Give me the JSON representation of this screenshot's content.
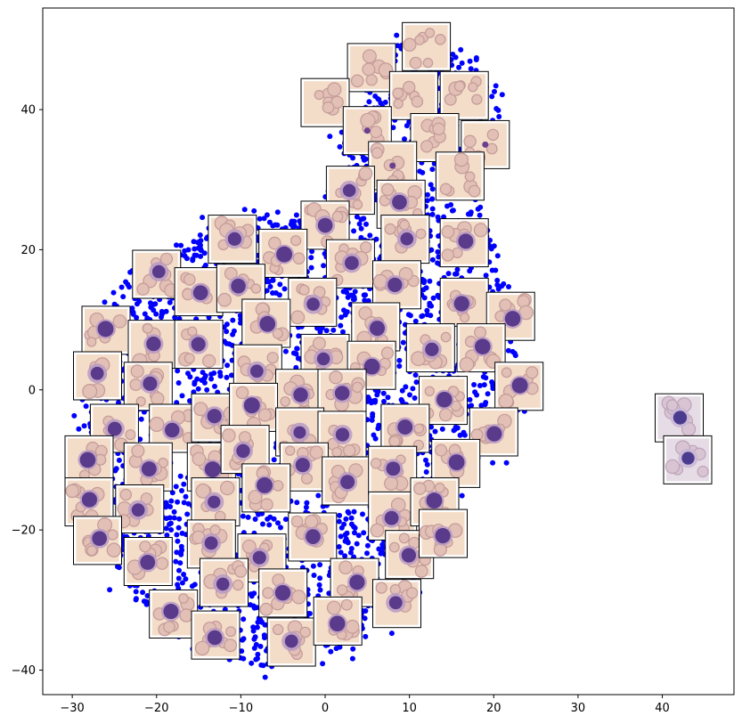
{
  "chart_data": {
    "type": "scatter",
    "title": "",
    "xlabel": "",
    "ylabel": "",
    "xlim": [
      -33.5,
      48.5
    ],
    "ylim": [
      -43.5,
      54.5
    ],
    "grid": false,
    "legend": "none",
    "xticks": [
      -30,
      -20,
      -10,
      0,
      10,
      20,
      30,
      40
    ],
    "yticks": [
      -40,
      -20,
      0,
      20,
      40
    ],
    "point_color": "#0000ff",
    "thumbnail_frame_color": "#000000",
    "cluster_outline": [
      [
        12,
        50
      ],
      [
        18,
        48
      ],
      [
        21,
        42
      ],
      [
        21,
        36
      ],
      [
        18,
        30
      ],
      [
        19,
        24
      ],
      [
        21,
        18
      ],
      [
        23,
        12
      ],
      [
        24,
        6
      ],
      [
        24,
        -2
      ],
      [
        22,
        -8
      ],
      [
        18,
        -14
      ],
      [
        14,
        -20
      ],
      [
        11,
        -26
      ],
      [
        9,
        -32
      ],
      [
        5,
        -36
      ],
      [
        0,
        -39
      ],
      [
        -5,
        -40
      ],
      [
        -10,
        -39
      ],
      [
        -14,
        -38
      ],
      [
        -18,
        -36
      ],
      [
        -22,
        -32
      ],
      [
        -24,
        -27
      ],
      [
        -27,
        -22
      ],
      [
        -30,
        -17
      ],
      [
        -30,
        -10
      ],
      [
        -29,
        -3
      ],
      [
        -29,
        4
      ],
      [
        -28,
        10
      ],
      [
        -24,
        16
      ],
      [
        -20,
        20
      ],
      [
        -14,
        23
      ],
      [
        -8,
        25
      ],
      [
        -2,
        26
      ],
      [
        2,
        30
      ],
      [
        1,
        36
      ],
      [
        3,
        43
      ],
      [
        8,
        49
      ]
    ],
    "outlier_points": [
      [
        41,
        -7
      ],
      [
        41,
        -10
      ],
      [
        42,
        -8
      ]
    ],
    "thumbnails": [
      {
        "x": 12,
        "y": 49,
        "kind": "rbc"
      },
      {
        "x": 5.5,
        "y": 46,
        "kind": "rbc"
      },
      {
        "x": 0,
        "y": 41,
        "kind": "rbc"
      },
      {
        "x": 10.5,
        "y": 42,
        "kind": "rbc"
      },
      {
        "x": 16.5,
        "y": 42,
        "kind": "rbc"
      },
      {
        "x": 5,
        "y": 37,
        "kind": "dot"
      },
      {
        "x": 13,
        "y": 36,
        "kind": "rbc"
      },
      {
        "x": 19,
        "y": 35,
        "kind": "dot"
      },
      {
        "x": 8,
        "y": 32,
        "kind": "dot"
      },
      {
        "x": 16,
        "y": 30.5,
        "kind": "rbc"
      },
      {
        "x": 3,
        "y": 28.5,
        "kind": "cell"
      },
      {
        "x": 9,
        "y": 26.5,
        "kind": "cell"
      },
      {
        "x": 0,
        "y": 23.5,
        "kind": "cell"
      },
      {
        "x": -11,
        "y": 21.5,
        "kind": "cell"
      },
      {
        "x": -5,
        "y": 19.5,
        "kind": "cell"
      },
      {
        "x": 3,
        "y": 18,
        "kind": "cell"
      },
      {
        "x": 9.5,
        "y": 21.5,
        "kind": "cell"
      },
      {
        "x": 16.5,
        "y": 21,
        "kind": "cell"
      },
      {
        "x": -20,
        "y": 16.5,
        "kind": "cell"
      },
      {
        "x": -15,
        "y": 14,
        "kind": "cell"
      },
      {
        "x": -10,
        "y": 14.5,
        "kind": "cell"
      },
      {
        "x": -1.5,
        "y": 12.5,
        "kind": "cell"
      },
      {
        "x": 8.5,
        "y": 15,
        "kind": "cell"
      },
      {
        "x": 16.5,
        "y": 12.5,
        "kind": "cell"
      },
      {
        "x": 22,
        "y": 10.5,
        "kind": "cell"
      },
      {
        "x": -26,
        "y": 8.5,
        "kind": "cell"
      },
      {
        "x": -20.5,
        "y": 6.5,
        "kind": "cell"
      },
      {
        "x": -15,
        "y": 6.5,
        "kind": "cell"
      },
      {
        "x": -7,
        "y": 9.5,
        "kind": "cell"
      },
      {
        "x": 6,
        "y": 9,
        "kind": "cell"
      },
      {
        "x": 12.5,
        "y": 6,
        "kind": "cell"
      },
      {
        "x": 18.5,
        "y": 6,
        "kind": "cell"
      },
      {
        "x": -27,
        "y": 2,
        "kind": "cell"
      },
      {
        "x": -21,
        "y": 0.5,
        "kind": "cell"
      },
      {
        "x": -8,
        "y": 3,
        "kind": "cell"
      },
      {
        "x": 0,
        "y": 4.5,
        "kind": "cell"
      },
      {
        "x": 5.5,
        "y": 3.5,
        "kind": "cell"
      },
      {
        "x": 23,
        "y": 0.5,
        "kind": "cell"
      },
      {
        "x": -3,
        "y": -0.5,
        "kind": "cell"
      },
      {
        "x": 2,
        "y": -0.5,
        "kind": "cell"
      },
      {
        "x": 14,
        "y": -1.5,
        "kind": "cell"
      },
      {
        "x": -25,
        "y": -5.5,
        "kind": "cell"
      },
      {
        "x": -18,
        "y": -5.5,
        "kind": "cell"
      },
      {
        "x": -13,
        "y": -4,
        "kind": "cell"
      },
      {
        "x": -8.5,
        "y": -2.5,
        "kind": "cell"
      },
      {
        "x": -3,
        "y": -6,
        "kind": "cell"
      },
      {
        "x": 2,
        "y": -6.5,
        "kind": "cell"
      },
      {
        "x": 9.5,
        "y": -5.5,
        "kind": "cell"
      },
      {
        "x": 20,
        "y": -6,
        "kind": "cell"
      },
      {
        "x": 42,
        "y": -4,
        "kind": "cell-pale"
      },
      {
        "x": 43,
        "y": -10,
        "kind": "cell-pale"
      },
      {
        "x": -28,
        "y": -10,
        "kind": "cell"
      },
      {
        "x": -21,
        "y": -11,
        "kind": "cell"
      },
      {
        "x": -13.5,
        "y": -11,
        "kind": "cell"
      },
      {
        "x": -9.5,
        "y": -8.5,
        "kind": "cell"
      },
      {
        "x": -2.5,
        "y": -11,
        "kind": "cell"
      },
      {
        "x": 2.5,
        "y": -13,
        "kind": "cell"
      },
      {
        "x": 8,
        "y": -11.5,
        "kind": "cell"
      },
      {
        "x": 15.5,
        "y": -10.5,
        "kind": "cell"
      },
      {
        "x": -28,
        "y": -16,
        "kind": "cell"
      },
      {
        "x": -22,
        "y": -17,
        "kind": "cell"
      },
      {
        "x": -13,
        "y": -16,
        "kind": "cell"
      },
      {
        "x": -7,
        "y": -14,
        "kind": "cell"
      },
      {
        "x": 8,
        "y": -18,
        "kind": "cell"
      },
      {
        "x": 13,
        "y": -16,
        "kind": "cell"
      },
      {
        "x": -27,
        "y": -21.5,
        "kind": "cell"
      },
      {
        "x": -21,
        "y": -24.5,
        "kind": "cell"
      },
      {
        "x": -13.5,
        "y": -22,
        "kind": "cell"
      },
      {
        "x": -7.5,
        "y": -24,
        "kind": "cell"
      },
      {
        "x": -1.5,
        "y": -21,
        "kind": "cell"
      },
      {
        "x": 10,
        "y": -23.5,
        "kind": "cell"
      },
      {
        "x": 14,
        "y": -20.5,
        "kind": "cell"
      },
      {
        "x": -12,
        "y": -27.5,
        "kind": "cell"
      },
      {
        "x": -5,
        "y": -29,
        "kind": "cell"
      },
      {
        "x": 3.5,
        "y": -27.5,
        "kind": "cell"
      },
      {
        "x": 8.5,
        "y": -30.5,
        "kind": "cell"
      },
      {
        "x": -18,
        "y": -32,
        "kind": "cell"
      },
      {
        "x": -13,
        "y": -35,
        "kind": "cell"
      },
      {
        "x": -4,
        "y": -36,
        "kind": "cell"
      },
      {
        "x": 1.5,
        "y": -33,
        "kind": "cell"
      }
    ]
  }
}
